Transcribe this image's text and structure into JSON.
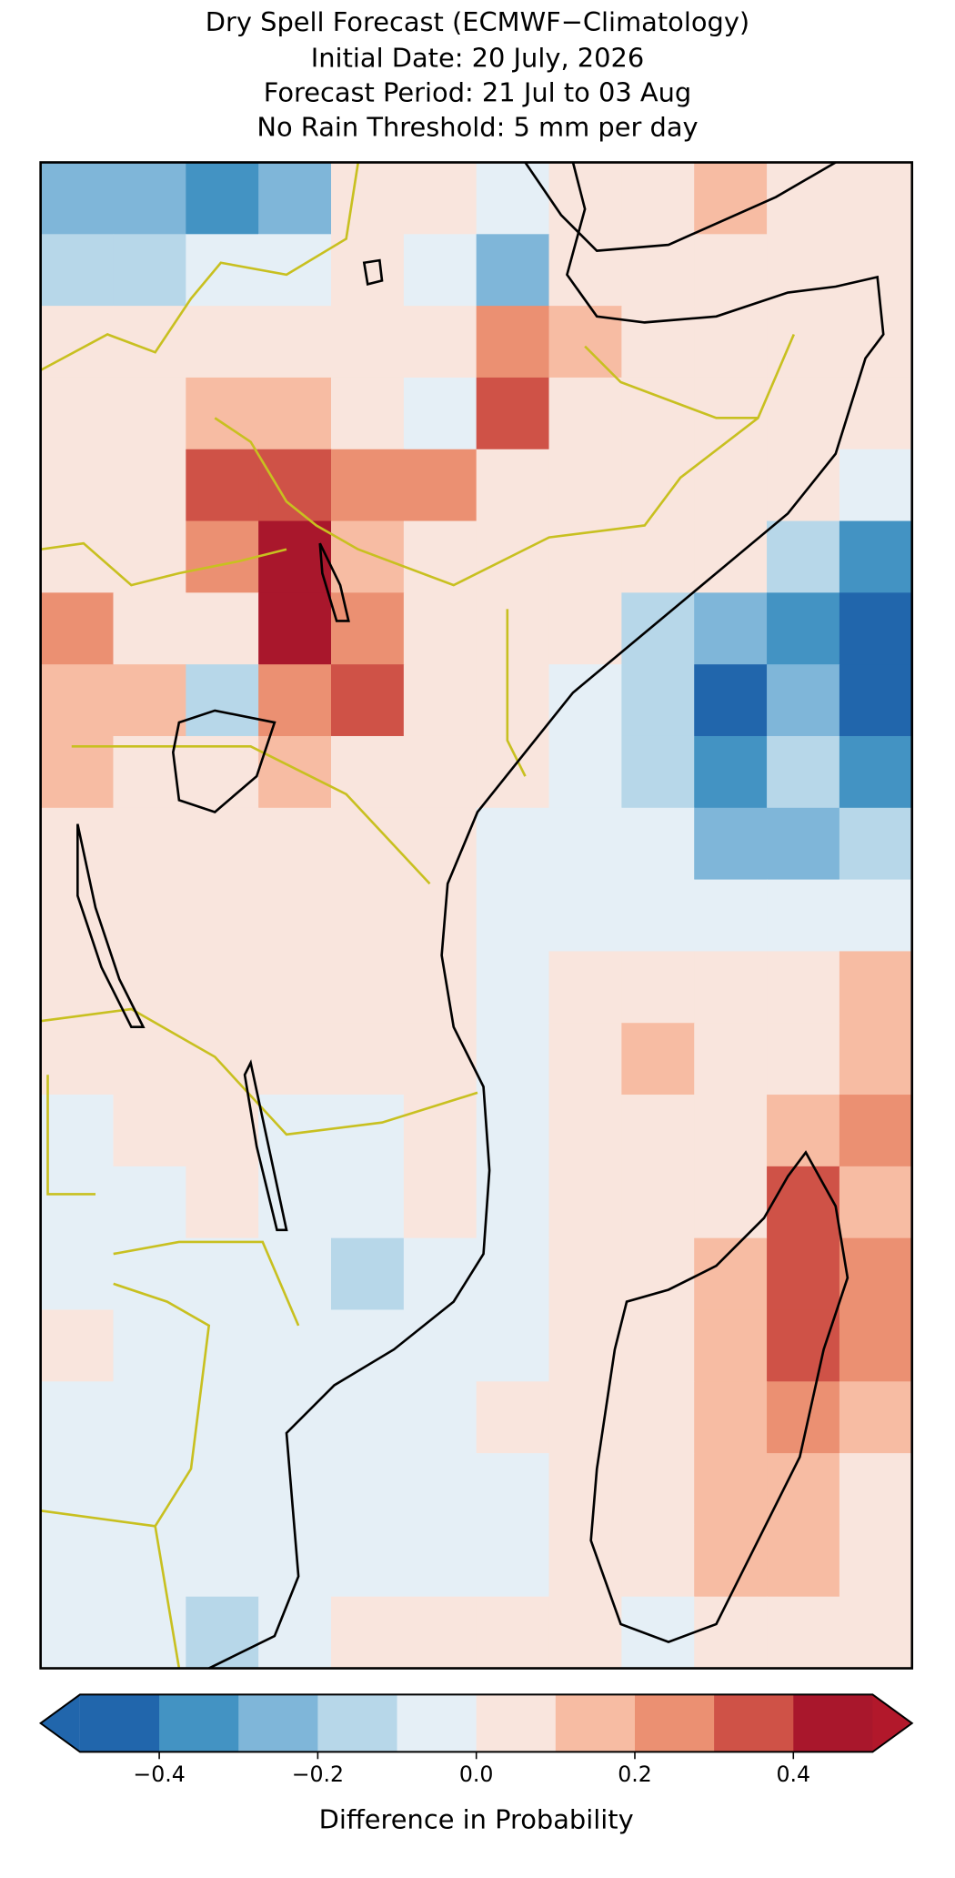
{
  "chart_data": {
    "type": "heatmap",
    "title": [
      "Dry Spell Forecast (ECMWF−Climatology)",
      "Initial Date: 20 July, 2026",
      "Forecast Period: 21 Jul to 03 Aug",
      "No Rain Threshold: 5 mm per day"
    ],
    "values": [
      [
        -0.2,
        -0.25,
        -0.3,
        -0.25,
        0.05,
        0.05,
        0.0,
        0.05,
        0.1,
        0.15,
        0.1,
        0.05
      ],
      [
        -0.15,
        -0.1,
        -0.05,
        -0.05,
        0.05,
        0.0,
        -0.2,
        0.05,
        0.05,
        0.05,
        0.05,
        0.05
      ],
      [
        0.05,
        0.05,
        0.05,
        0.05,
        0.05,
        0.05,
        0.25,
        0.15,
        0.05,
        0.05,
        0.05,
        0.05
      ],
      [
        0.05,
        0.05,
        0.15,
        0.2,
        0.05,
        0.0,
        0.35,
        0.05,
        0.05,
        0.05,
        0.05,
        0.05
      ],
      [
        0.05,
        0.1,
        0.35,
        0.35,
        0.25,
        0.25,
        0.05,
        0.05,
        0.05,
        0.05,
        0.05,
        -0.05
      ],
      [
        0.05,
        0.05,
        0.3,
        0.45,
        0.2,
        0.05,
        0.05,
        0.05,
        0.05,
        0.05,
        -0.15,
        -0.35
      ],
      [
        0.25,
        0.1,
        0.05,
        0.45,
        0.3,
        0.05,
        0.05,
        0.05,
        -0.1,
        -0.2,
        -0.35,
        -0.45
      ],
      [
        0.2,
        0.15,
        -0.1,
        0.25,
        0.35,
        0.05,
        0.05,
        0.0,
        -0.15,
        -0.4,
        -0.25,
        -0.4
      ],
      [
        0.2,
        0.1,
        0.1,
        0.15,
        0.05,
        0.05,
        0.05,
        0.0,
        -0.1,
        -0.3,
        -0.15,
        -0.3
      ],
      [
        0.05,
        0.05,
        0.05,
        0.05,
        0.05,
        0.05,
        0.0,
        -0.05,
        -0.05,
        -0.2,
        -0.2,
        -0.1
      ],
      [
        0.05,
        0.05,
        0.05,
        0.05,
        0.05,
        0.05,
        0.0,
        -0.05,
        -0.05,
        -0.05,
        -0.05,
        0.0
      ],
      [
        0.05,
        0.05,
        0.05,
        0.05,
        0.05,
        0.05,
        0.0,
        0.05,
        0.05,
        0.05,
        0.1,
        0.15
      ],
      [
        0.05,
        0.05,
        0.05,
        0.05,
        0.05,
        0.05,
        0.0,
        0.1,
        0.15,
        0.1,
        0.1,
        0.15
      ],
      [
        -0.05,
        0.05,
        0.05,
        0.0,
        0.0,
        0.05,
        -0.05,
        0.1,
        0.05,
        0.1,
        0.2,
        0.25
      ],
      [
        -0.05,
        0.0,
        0.05,
        0.0,
        -0.05,
        0.05,
        -0.05,
        0.05,
        0.05,
        0.1,
        0.35,
        0.2
      ],
      [
        -0.05,
        -0.05,
        0.0,
        -0.05,
        -0.1,
        -0.05,
        -0.05,
        0.1,
        0.05,
        0.15,
        0.35,
        0.25
      ],
      [
        0.05,
        -0.05,
        0.0,
        0.0,
        -0.05,
        -0.05,
        0.0,
        0.05,
        0.05,
        0.15,
        0.35,
        0.25
      ],
      [
        0.0,
        -0.05,
        -0.05,
        -0.05,
        -0.05,
        -0.05,
        0.05,
        0.05,
        0.1,
        0.15,
        0.25,
        0.15
      ],
      [
        -0.05,
        0.0,
        0.0,
        -0.05,
        -0.05,
        -0.05,
        0.0,
        0.05,
        0.1,
        0.15,
        0.2,
        0.1
      ],
      [
        -0.05,
        -0.05,
        0.0,
        -0.05,
        -0.05,
        -0.05,
        0.0,
        0.05,
        0.05,
        0.2,
        0.15,
        0.05
      ],
      [
        -0.05,
        -0.05,
        -0.1,
        0.0,
        0.05,
        0.05,
        0.05,
        0.05,
        0.0,
        0.05,
        0.05,
        0.05
      ]
    ],
    "colorbar": {
      "label": "Difference in Probability",
      "levels": [
        -0.5,
        -0.4,
        -0.3,
        -0.2,
        -0.1,
        0,
        0.1,
        0.2,
        0.3,
        0.4,
        0.5
      ],
      "colors": [
        "#2166ac",
        "#4393c3",
        "#7fb6d9",
        "#b7d7e9",
        "#e5eff6",
        "#f9e5dd",
        "#f7bca3",
        "#eb9072",
        "#cf5247",
        "#a9172c"
      ],
      "extend_colors": [
        "#2166ac",
        "#b2182b"
      ],
      "ticks": [
        {
          "value": -0.4,
          "label": "−0.4"
        },
        {
          "value": -0.2,
          "label": "−0.2"
        },
        {
          "value": 0,
          "label": "0.0"
        },
        0.2,
        0.4
      ]
    }
  }
}
